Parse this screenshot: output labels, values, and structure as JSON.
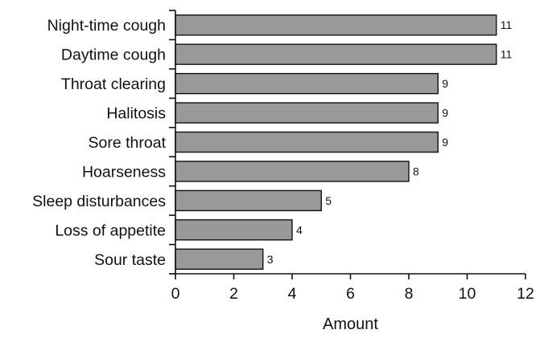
{
  "chart_data": {
    "type": "bar",
    "orientation": "horizontal",
    "categories": [
      "Night-time cough",
      "Daytime cough",
      "Throat clearing",
      "Halitosis",
      "Sore throat",
      "Hoarseness",
      "Sleep disturbances",
      "Loss of appetite",
      "Sour taste"
    ],
    "values": [
      11,
      11,
      9,
      9,
      9,
      8,
      5,
      4,
      3
    ],
    "xlabel": "Amount",
    "ylabel": "",
    "xlim": [
      0,
      12
    ],
    "xticks": [
      0,
      2,
      4,
      6,
      8,
      10,
      12
    ],
    "grid": false,
    "colors": {
      "bar": "#999999",
      "outline": "#111111"
    }
  }
}
